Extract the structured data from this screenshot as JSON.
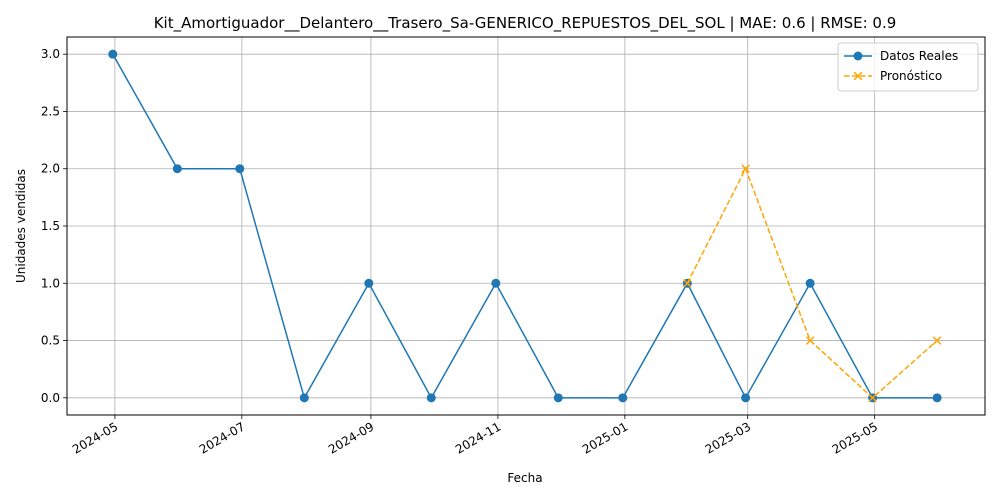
{
  "chart_data": {
    "type": "line",
    "title": "Kit_Amortiguador__Delantero__Trasero_Sa-GENERICO_REPUESTOS_DEL_SOL | MAE: 0.6 | RMSE: 0.9",
    "xlabel": "Fecha",
    "ylabel": "Unidades vendidas",
    "ylim": [
      -0.15,
      3.15
    ],
    "xlim": [
      "2024-04-08",
      "2025-06-23"
    ],
    "grid": true,
    "legend_position": "upper right",
    "yticks": [
      0.0,
      0.5,
      1.0,
      1.5,
      2.0,
      2.5,
      3.0
    ],
    "ytick_labels": [
      "0.0",
      "0.5",
      "1.0",
      "1.5",
      "2.0",
      "2.5",
      "3.0"
    ],
    "xticks": [
      "2024-05-01",
      "2024-07-01",
      "2024-09-01",
      "2024-11-01",
      "2025-01-01",
      "2025-03-01",
      "2025-05-01"
    ],
    "xtick_labels": [
      "2024-05",
      "2024-07",
      "2024-09",
      "2024-11",
      "2025-01",
      "2025-03",
      "2025-05"
    ],
    "series": [
      {
        "name": "Datos Reales",
        "color": "#1f77b4",
        "style": "solid",
        "marker": "circle",
        "x": [
          "2024-04-30",
          "2024-05-31",
          "2024-06-30",
          "2024-07-31",
          "2024-08-31",
          "2024-09-30",
          "2024-10-31",
          "2024-11-30",
          "2024-12-31",
          "2025-01-31",
          "2025-02-28",
          "2025-03-31",
          "2025-04-30",
          "2025-05-31"
        ],
        "y": [
          3,
          2,
          2,
          0,
          1,
          0,
          1,
          0,
          0,
          1,
          0,
          1,
          0,
          0
        ]
      },
      {
        "name": "Pronóstico",
        "color": "#ffa500",
        "style": "dashed",
        "marker": "x",
        "x": [
          "2025-01-31",
          "2025-02-28",
          "2025-03-31",
          "2025-04-30",
          "2025-05-31"
        ],
        "y": [
          1.0,
          2.0,
          0.5,
          0.0,
          0.5
        ]
      }
    ]
  }
}
